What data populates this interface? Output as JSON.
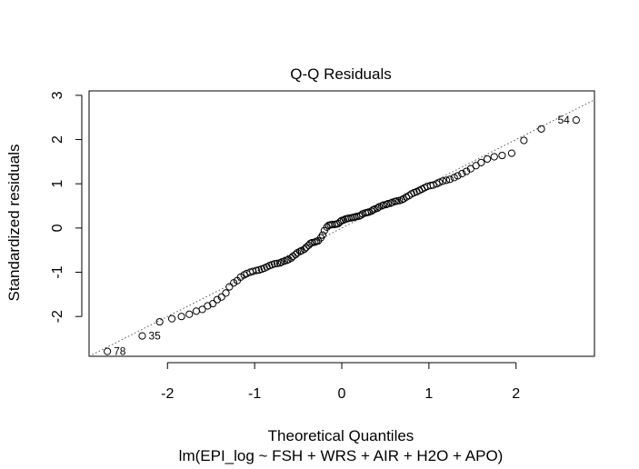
{
  "chart_data": {
    "type": "scatter",
    "title": "Q-Q Residuals",
    "xlabel": "Theoretical Quantiles",
    "subtitle": "lm(EPI_log ~ FSH + WRS + AIR + H2O + APO)",
    "ylabel": "Standardized residuals",
    "xlim": [
      -2.9,
      2.9
    ],
    "ylim": [
      -2.9,
      3.1
    ],
    "x_ticks": [
      -2,
      -1,
      0,
      1,
      2
    ],
    "y_ticks": [
      -2,
      -1,
      0,
      1,
      2,
      3
    ],
    "x_tick_labels": [
      "-2",
      "-1",
      "0",
      "1",
      "2"
    ],
    "y_tick_labels": [
      "-2",
      "-1",
      "0",
      "1",
      "2",
      "3"
    ],
    "reference_line": {
      "style": "dotted",
      "intercept": 0.0,
      "slope": 1.0
    },
    "grid": false,
    "points": [
      [
        -2.69,
        -2.79
      ],
      [
        -2.29,
        -2.44
      ],
      [
        -2.09,
        -2.12
      ],
      [
        -1.95,
        -2.05
      ],
      [
        -1.84,
        -2.0
      ],
      [
        -1.75,
        -1.95
      ],
      [
        -1.67,
        -1.88
      ],
      [
        -1.6,
        -1.84
      ],
      [
        -1.54,
        -1.76
      ],
      [
        -1.48,
        -1.71
      ],
      [
        -1.43,
        -1.62
      ],
      [
        -1.38,
        -1.56
      ],
      [
        -1.33,
        -1.47
      ],
      [
        -1.29,
        -1.33
      ],
      [
        -1.24,
        -1.24
      ],
      [
        -1.2,
        -1.19
      ],
      [
        -1.16,
        -1.11
      ],
      [
        -1.12,
        -1.06
      ],
      [
        -1.09,
        -1.03
      ],
      [
        -1.05,
        -1.0
      ],
      [
        -1.02,
        -0.98
      ],
      [
        -0.98,
        -0.96
      ],
      [
        -0.95,
        -0.95
      ],
      [
        -0.92,
        -0.93
      ],
      [
        -0.89,
        -0.91
      ],
      [
        -0.86,
        -0.88
      ],
      [
        -0.83,
        -0.85
      ],
      [
        -0.8,
        -0.83
      ],
      [
        -0.77,
        -0.81
      ],
      [
        -0.74,
        -0.8
      ],
      [
        -0.71,
        -0.79
      ],
      [
        -0.69,
        -0.77
      ],
      [
        -0.66,
        -0.75
      ],
      [
        -0.63,
        -0.73
      ],
      [
        -0.61,
        -0.71
      ],
      [
        -0.58,
        -0.68
      ],
      [
        -0.56,
        -0.64
      ],
      [
        -0.53,
        -0.6
      ],
      [
        -0.51,
        -0.56
      ],
      [
        -0.48,
        -0.53
      ],
      [
        -0.46,
        -0.51
      ],
      [
        -0.43,
        -0.48
      ],
      [
        -0.41,
        -0.44
      ],
      [
        -0.38,
        -0.39
      ],
      [
        -0.36,
        -0.35
      ],
      [
        -0.34,
        -0.33
      ],
      [
        -0.31,
        -0.32
      ],
      [
        -0.29,
        -0.3
      ],
      [
        -0.27,
        -0.29
      ],
      [
        -0.24,
        -0.22
      ],
      [
        -0.22,
        -0.16
      ],
      [
        -0.2,
        -0.06
      ],
      [
        -0.17,
        0.02
      ],
      [
        -0.15,
        0.06
      ],
      [
        -0.13,
        0.07
      ],
      [
        -0.11,
        0.08
      ],
      [
        -0.08,
        0.08
      ],
      [
        -0.06,
        0.09
      ],
      [
        -0.04,
        0.1
      ],
      [
        -0.02,
        0.14
      ],
      [
        0.0,
        0.17
      ],
      [
        0.02,
        0.18
      ],
      [
        0.04,
        0.2
      ],
      [
        0.06,
        0.21
      ],
      [
        0.08,
        0.22
      ],
      [
        0.11,
        0.23
      ],
      [
        0.13,
        0.24
      ],
      [
        0.15,
        0.25
      ],
      [
        0.17,
        0.26
      ],
      [
        0.2,
        0.27
      ],
      [
        0.22,
        0.29
      ],
      [
        0.24,
        0.32
      ],
      [
        0.27,
        0.34
      ],
      [
        0.29,
        0.35
      ],
      [
        0.31,
        0.36
      ],
      [
        0.34,
        0.38
      ],
      [
        0.36,
        0.41
      ],
      [
        0.38,
        0.43
      ],
      [
        0.41,
        0.45
      ],
      [
        0.43,
        0.48
      ],
      [
        0.46,
        0.5
      ],
      [
        0.48,
        0.52
      ],
      [
        0.51,
        0.53
      ],
      [
        0.53,
        0.55
      ],
      [
        0.56,
        0.56
      ],
      [
        0.58,
        0.58
      ],
      [
        0.61,
        0.6
      ],
      [
        0.63,
        0.61
      ],
      [
        0.66,
        0.62
      ],
      [
        0.69,
        0.64
      ],
      [
        0.71,
        0.66
      ],
      [
        0.74,
        0.7
      ],
      [
        0.77,
        0.73
      ],
      [
        0.8,
        0.77
      ],
      [
        0.83,
        0.8
      ],
      [
        0.86,
        0.82
      ],
      [
        0.89,
        0.85
      ],
      [
        0.92,
        0.88
      ],
      [
        0.95,
        0.91
      ],
      [
        0.98,
        0.94
      ],
      [
        1.02,
        0.96
      ],
      [
        1.05,
        0.97
      ],
      [
        1.09,
        1.0
      ],
      [
        1.12,
        1.03
      ],
      [
        1.16,
        1.06
      ],
      [
        1.2,
        1.08
      ],
      [
        1.24,
        1.1
      ],
      [
        1.29,
        1.14
      ],
      [
        1.33,
        1.18
      ],
      [
        1.38,
        1.23
      ],
      [
        1.43,
        1.28
      ],
      [
        1.48,
        1.34
      ],
      [
        1.54,
        1.41
      ],
      [
        1.6,
        1.48
      ],
      [
        1.67,
        1.56
      ],
      [
        1.75,
        1.61
      ],
      [
        1.84,
        1.64
      ],
      [
        1.95,
        1.69
      ],
      [
        2.09,
        1.98
      ],
      [
        2.29,
        2.24
      ],
      [
        2.69,
        2.44
      ]
    ],
    "labeled_points": [
      {
        "label": "54",
        "x": 2.69,
        "y": 2.44
      },
      {
        "label": "35",
        "x": -2.29,
        "y": -2.44
      },
      {
        "label": "78",
        "x": -2.69,
        "y": -2.79
      }
    ]
  }
}
